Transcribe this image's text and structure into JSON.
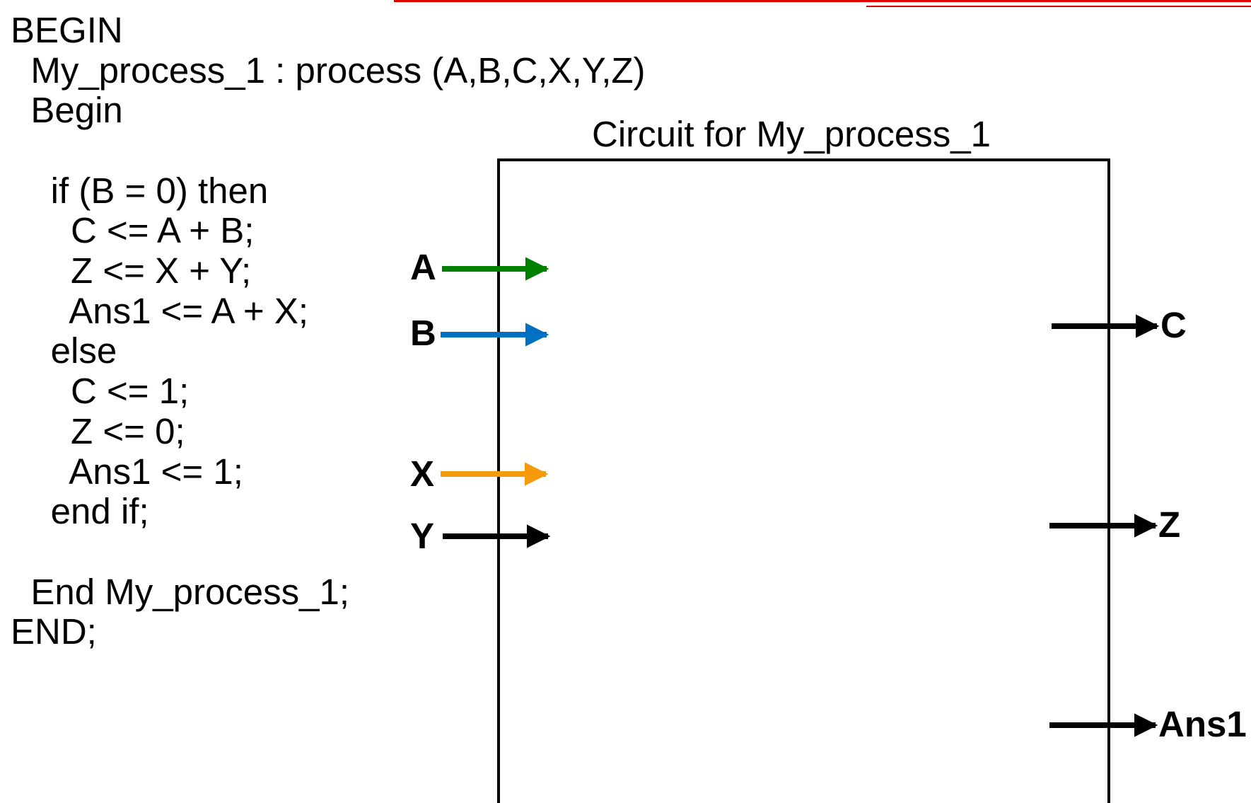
{
  "code": {
    "lines": [
      "BEGIN",
      "  My_process_1 : process (A,B,C,X,Y,Z)",
      "  Begin",
      "",
      "    if (B = 0) then",
      "      C <= A + B;",
      "      Z <= X + Y;",
      "      Ans1 <= A + X;",
      "    else",
      "      C <= 1;",
      "      Z <= 0;",
      "      Ans1 <= 1;",
      "    end if;",
      "",
      "  End My_process_1;",
      "END;"
    ]
  },
  "circuit": {
    "title": "Circuit for My_process_1",
    "inputs": [
      {
        "label": "A",
        "color": "#008000"
      },
      {
        "label": "B",
        "color": "#0070c0"
      },
      {
        "label": "X",
        "color": "#f59a0c"
      },
      {
        "label": "Y",
        "color": "#000000"
      }
    ],
    "outputs": [
      {
        "label": "C",
        "color": "#000000"
      },
      {
        "label": "Z",
        "color": "#000000"
      },
      {
        "label": "Ans1",
        "color": "#000000"
      }
    ]
  },
  "colors": {
    "accent_rule": "#e00000",
    "box_stroke": "#000000"
  }
}
